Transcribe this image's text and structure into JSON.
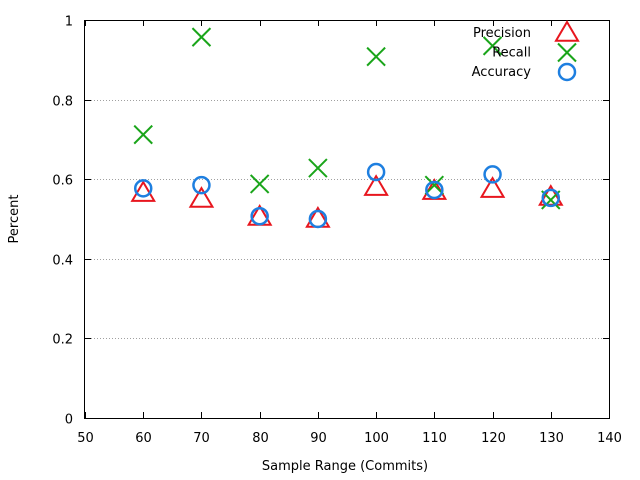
{
  "chart_data": {
    "type": "scatter",
    "title": "",
    "xlabel": "Sample Range (Commits)",
    "ylabel": "Percent",
    "xlim": [
      50,
      140
    ],
    "ylim": [
      0,
      1
    ],
    "x_ticks": [
      50,
      60,
      70,
      80,
      90,
      100,
      110,
      120,
      130,
      140
    ],
    "y_ticks": [
      0,
      0.2,
      0.4,
      0.6,
      0.8,
      1
    ],
    "x_tick_labels": [
      "50",
      "60",
      "70",
      "80",
      "90",
      "100",
      "110",
      "120",
      "130",
      "140"
    ],
    "y_tick_labels": [
      "0",
      "0.2",
      "0.4",
      "0.6",
      "0.8",
      "1"
    ],
    "grid": "horizontal dotted",
    "legend_position": "top-right",
    "series": [
      {
        "name": "Precision",
        "marker": "triangle",
        "color": "#e8161e",
        "points": [
          [
            60,
            0.565
          ],
          [
            70,
            0.55
          ],
          [
            80,
            0.505
          ],
          [
            90,
            0.5
          ],
          [
            100,
            0.58
          ],
          [
            110,
            0.57
          ],
          [
            120,
            0.575
          ],
          [
            130,
            0.555
          ]
        ]
      },
      {
        "name": "Recall",
        "marker": "x",
        "color": "#1aa51a",
        "points": [
          [
            60,
            0.712
          ],
          [
            70,
            0.957
          ],
          [
            80,
            0.588
          ],
          [
            90,
            0.628
          ],
          [
            100,
            0.908
          ],
          [
            110,
            0.585
          ],
          [
            120,
            0.935
          ],
          [
            130,
            0.548
          ]
        ]
      },
      {
        "name": "Accuracy",
        "marker": "circle",
        "color": "#1e7fe0",
        "points": [
          [
            60,
            0.577
          ],
          [
            70,
            0.585
          ],
          [
            80,
            0.507
          ],
          [
            90,
            0.5
          ],
          [
            100,
            0.618
          ],
          [
            110,
            0.573
          ],
          [
            120,
            0.612
          ],
          [
            130,
            0.553
          ]
        ]
      }
    ]
  }
}
